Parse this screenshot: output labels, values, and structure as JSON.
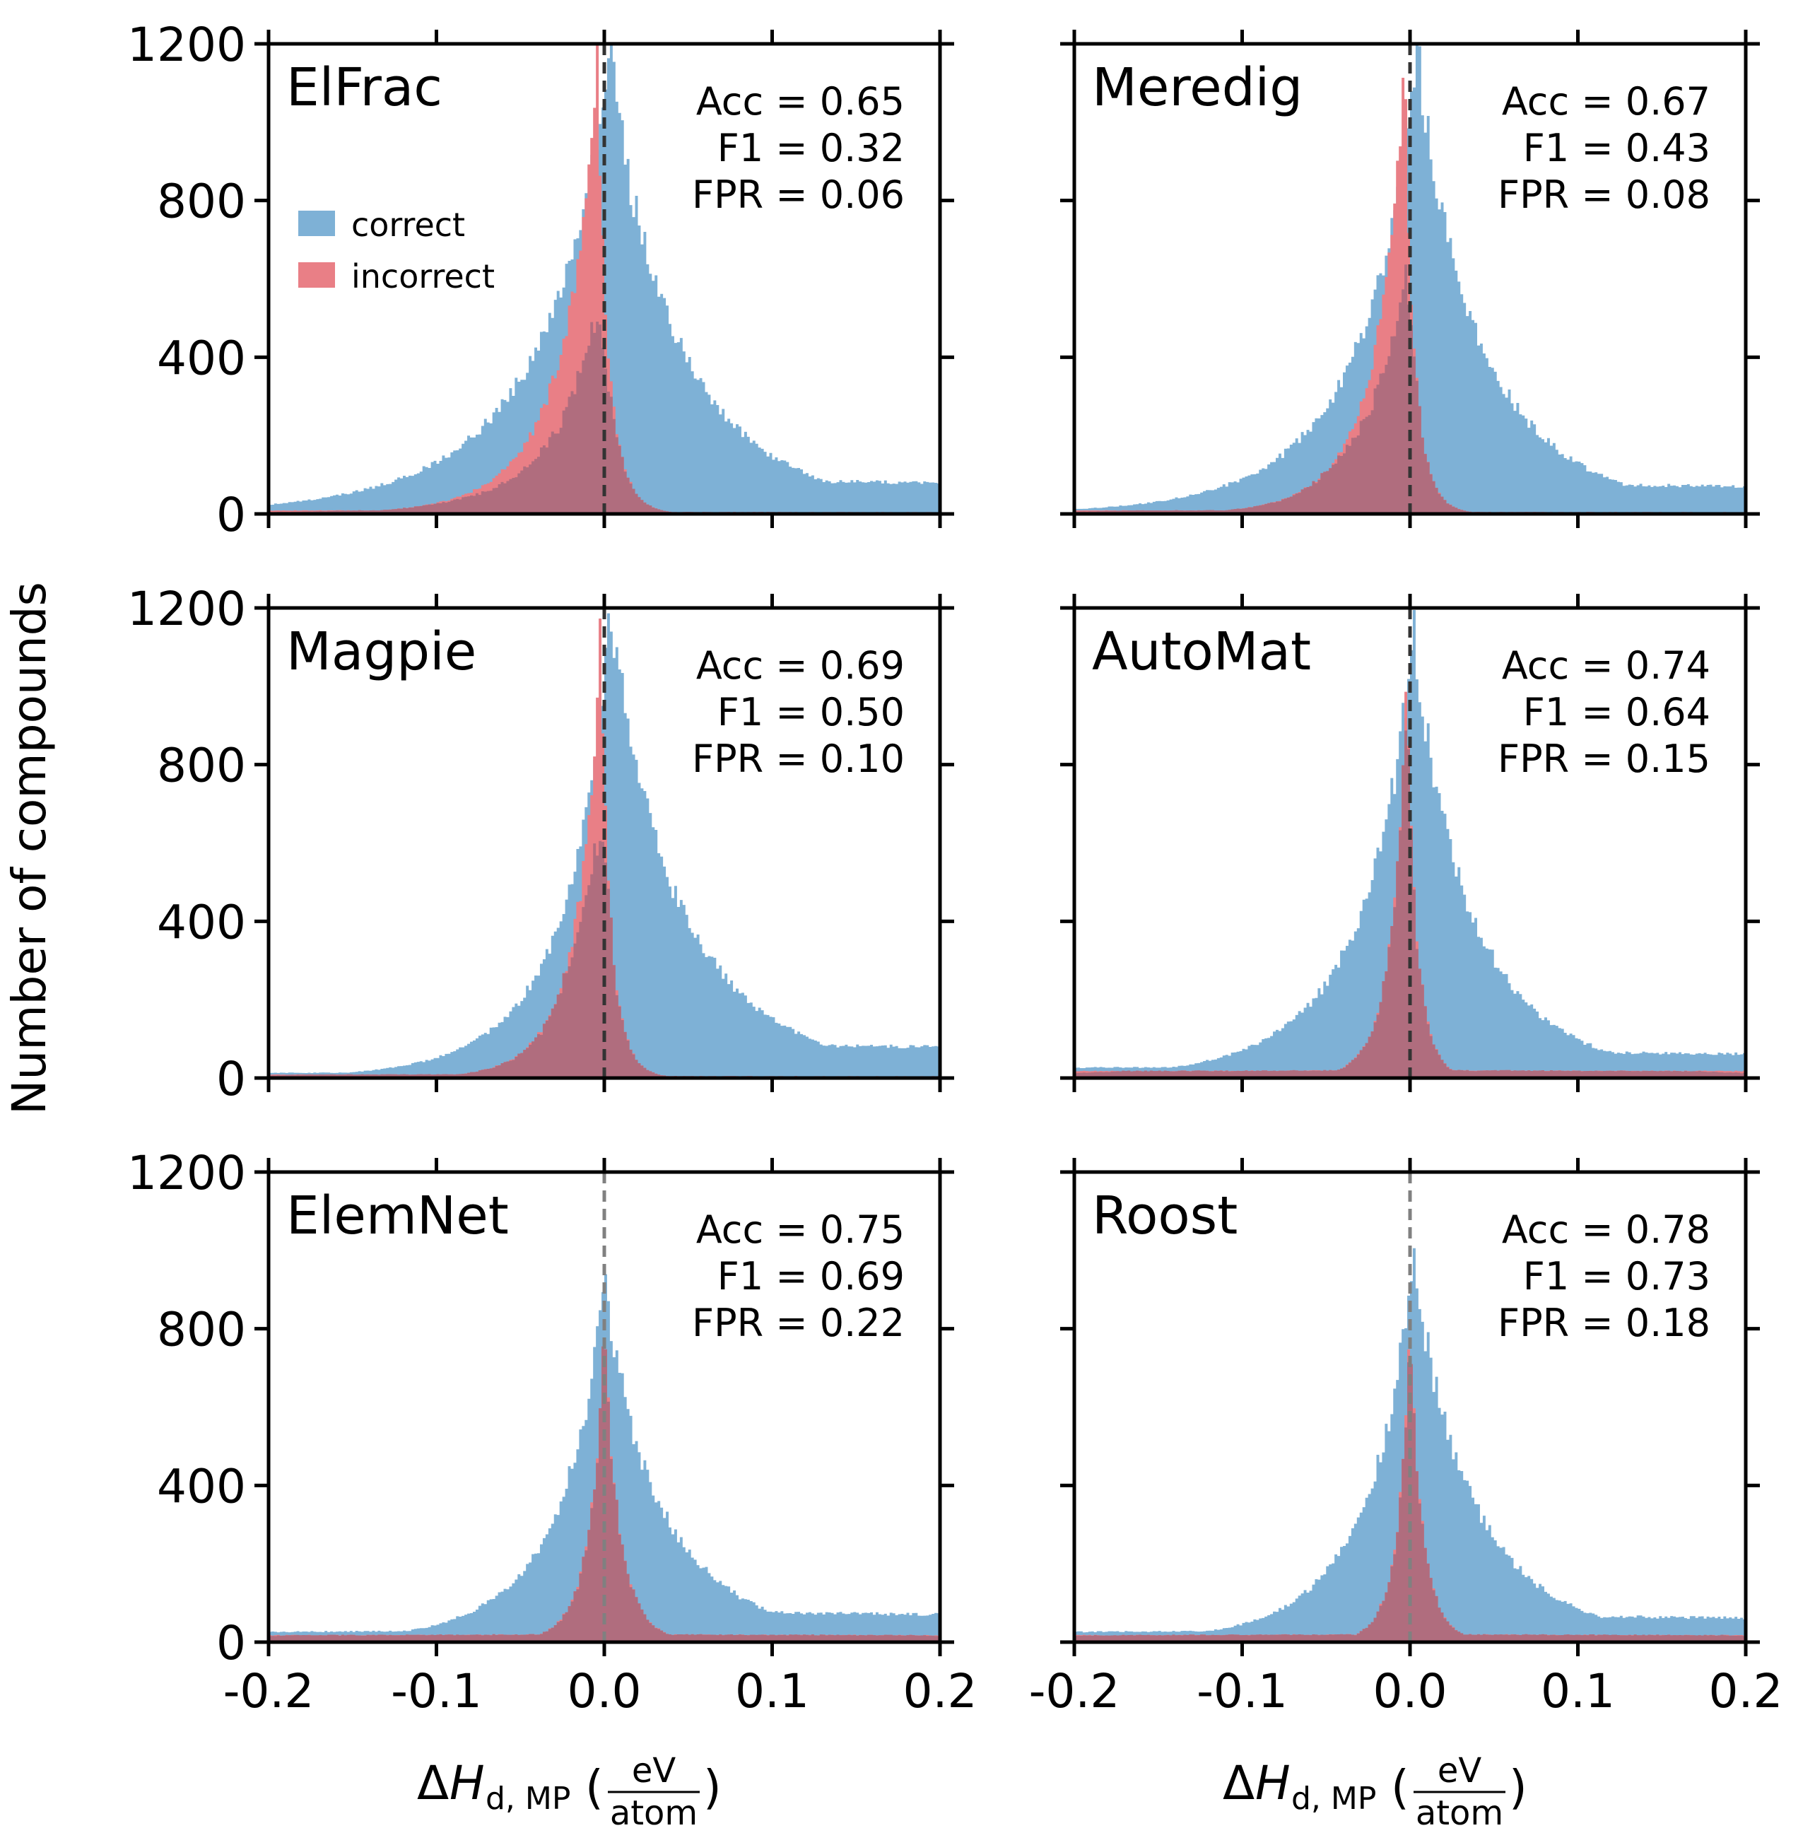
{
  "figure": {
    "ylabel": "Number of compounds",
    "xlabel": {
      "delta": "Δ",
      "symbol": "H",
      "subscript": "d, MP",
      "open_paren": "(",
      "frac_num": "eV",
      "frac_den": "atom",
      "close_paren": ")"
    }
  },
  "colors": {
    "correct": "#7eb1d6",
    "incorrect": "#e97f86",
    "overlap": "#b06d7e",
    "zero_line": "#333333"
  },
  "chart_data": [
    {
      "type": "histogram",
      "title": "ElFrac",
      "metrics": [
        "Acc = 0.65",
        "F1 = 0.32",
        "FPR = 0.06"
      ],
      "xlim": [
        -0.2,
        0.2
      ],
      "ylim": [
        0,
        1200
      ],
      "xticks": [
        "-0.2",
        "-0.1",
        "0.0",
        "0.1",
        "0.2"
      ],
      "yticks": [
        "0",
        "400",
        "800",
        "1200"
      ],
      "legend": {
        "position": "upper-left",
        "entries": [
          "correct",
          "incorrect"
        ]
      },
      "zero_line": {
        "x": 0.0,
        "style": "dashed"
      },
      "series": [
        {
          "name": "correct",
          "peak_x": 0.003,
          "peak": 1220,
          "left_width": 0.06,
          "right_width": 0.06,
          "tail_right": 90,
          "tail_left": 15
        },
        {
          "name": "incorrect",
          "peak_x": -0.004,
          "peak": 1200,
          "left_width": 0.03,
          "right_width": 0.009,
          "tail_left": 10,
          "tail_right": 5
        }
      ],
      "overlap_peak": 190
    },
    {
      "type": "histogram",
      "title": "Meredig",
      "metrics": [
        "Acc = 0.67",
        "F1 = 0.43",
        "FPR = 0.08"
      ],
      "xlim": [
        -0.2,
        0.2
      ],
      "ylim": [
        0,
        1200
      ],
      "xticks": [
        "-0.2",
        "-0.1",
        "0.0",
        "0.1",
        "0.2"
      ],
      "yticks": [
        "0",
        "400",
        "800",
        "1200"
      ],
      "zero_line": {
        "x": 0.0,
        "style": "dashed"
      },
      "series": [
        {
          "name": "correct",
          "peak_x": 0.004,
          "peak": 1220,
          "left_width": 0.05,
          "right_width": 0.055,
          "tail_right": 80,
          "tail_left": 15
        },
        {
          "name": "incorrect",
          "peak_x": -0.003,
          "peak": 1200,
          "left_width": 0.025,
          "right_width": 0.008,
          "tail_left": 10,
          "tail_right": 5
        }
      ],
      "overlap_peak": 280
    },
    {
      "type": "histogram",
      "title": "Magpie",
      "metrics": [
        "Acc = 0.69",
        "F1 = 0.50",
        "FPR = 0.10"
      ],
      "xlim": [
        -0.2,
        0.2
      ],
      "ylim": [
        0,
        1200
      ],
      "xticks": [
        "-0.2",
        "-0.1",
        "0.0",
        "0.1",
        "0.2"
      ],
      "yticks": [
        "0",
        "400",
        "800",
        "1200"
      ],
      "zero_line": {
        "x": 0.0,
        "style": "dashed"
      },
      "series": [
        {
          "name": "correct",
          "peak_x": 0.004,
          "peak": 1220,
          "left_width": 0.04,
          "right_width": 0.06,
          "tail_right": 90,
          "tail_left": 15
        },
        {
          "name": "incorrect",
          "peak_x": -0.002,
          "peak": 1200,
          "left_width": 0.02,
          "right_width": 0.008,
          "tail_left": 10,
          "tail_right": 5
        }
      ],
      "overlap_peak": 340
    },
    {
      "type": "histogram",
      "title": "AutoMat",
      "metrics": [
        "Acc = 0.74",
        "F1 = 0.64",
        "FPR = 0.15"
      ],
      "xlim": [
        -0.2,
        0.2
      ],
      "ylim": [
        0,
        1200
      ],
      "xticks": [
        "-0.2",
        "-0.1",
        "0.0",
        "0.1",
        "0.2"
      ],
      "yticks": [
        "0",
        "400",
        "800",
        "1200"
      ],
      "zero_line": {
        "x": 0.0,
        "style": "dashed"
      },
      "series": [
        {
          "name": "correct",
          "peak_x": 0.002,
          "peak": 1180,
          "left_width": 0.045,
          "right_width": 0.05,
          "tail_right": 70,
          "tail_left": 30
        },
        {
          "name": "incorrect",
          "peak_x": -0.002,
          "peak": 1140,
          "left_width": 0.012,
          "right_width": 0.008,
          "tail_left": 20,
          "tail_right": 20
        }
      ],
      "overlap_peak": 620
    },
    {
      "type": "histogram",
      "title": "ElemNet",
      "metrics": [
        "Acc = 0.75",
        "F1 = 0.69",
        "FPR = 0.22"
      ],
      "xlim": [
        -0.2,
        0.2
      ],
      "ylim": [
        0,
        1200
      ],
      "xticks": [
        "-0.2",
        "-0.1",
        "0.0",
        "0.1",
        "0.2"
      ],
      "yticks": [
        "0",
        "400",
        "800",
        "1200"
      ],
      "zero_line": {
        "x": 0.0,
        "style": "dashed"
      },
      "series": [
        {
          "name": "correct",
          "peak_x": 0.0,
          "peak": 950,
          "left_width": 0.04,
          "right_width": 0.05,
          "tail_right": 80,
          "tail_left": 30
        },
        {
          "name": "incorrect",
          "peak_x": 0.0,
          "peak": 880,
          "left_width": 0.012,
          "right_width": 0.012,
          "tail_left": 20,
          "tail_right": 20
        }
      ],
      "overlap_peak": 880
    },
    {
      "type": "histogram",
      "title": "Roost",
      "metrics": [
        "Acc = 0.78",
        "F1 = 0.73",
        "FPR = 0.18"
      ],
      "xlim": [
        -0.2,
        0.2
      ],
      "ylim": [
        0,
        1200
      ],
      "xticks": [
        "-0.2",
        "-0.1",
        "0.0",
        "0.1",
        "0.2"
      ],
      "yticks": [
        "0",
        "400",
        "800",
        "1200"
      ],
      "zero_line": {
        "x": 0.0,
        "style": "dashed"
      },
      "series": [
        {
          "name": "correct",
          "peak_x": 0.002,
          "peak": 1030,
          "left_width": 0.04,
          "right_width": 0.05,
          "tail_right": 70,
          "tail_left": 30
        },
        {
          "name": "incorrect",
          "peak_x": 0.0,
          "peak": 880,
          "left_width": 0.01,
          "right_width": 0.01,
          "tail_left": 20,
          "tail_right": 20
        }
      ],
      "overlap_peak": 880
    }
  ]
}
